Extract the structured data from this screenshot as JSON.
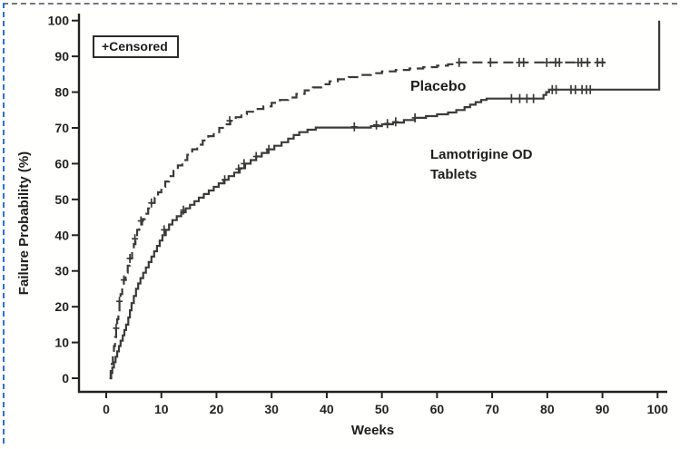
{
  "figure": {
    "legend_label": "+Censored",
    "annotations": {
      "placebo": "Placebo",
      "lamotrigine_line1": "Lamotrigine OD",
      "lamotrigine_line2": "Tablets"
    }
  },
  "chart_data": {
    "type": "line",
    "subtype": "kaplan-meier-step",
    "title": "",
    "xlabel": "Weeks",
    "ylabel": "Failure Probability (%)",
    "xlim": [
      0,
      100
    ],
    "ylim": [
      0,
      100
    ],
    "x_ticks": [
      0,
      10,
      20,
      30,
      40,
      50,
      60,
      70,
      80,
      90,
      100
    ],
    "y_ticks": [
      0,
      10,
      20,
      30,
      40,
      50,
      60,
      70,
      80,
      90,
      100
    ],
    "grid": false,
    "legend": {
      "label": "+Censored",
      "position": "top-left"
    },
    "axis_color": "#222222",
    "series": [
      {
        "id": "placebo",
        "name": "Placebo",
        "style": "dashed",
        "color": "#3a3a3a",
        "step": true,
        "points": [
          [
            0.6,
            0
          ],
          [
            0.8,
            2
          ],
          [
            1,
            4
          ],
          [
            1.2,
            6.5
          ],
          [
            1.4,
            9
          ],
          [
            1.6,
            11.5
          ],
          [
            1.8,
            14
          ],
          [
            2,
            16.5
          ],
          [
            2.2,
            19
          ],
          [
            2.4,
            21.5
          ],
          [
            2.6,
            23.5
          ],
          [
            2.9,
            25.5
          ],
          [
            3.2,
            27.5
          ],
          [
            3.5,
            29.5
          ],
          [
            3.9,
            31.5
          ],
          [
            4.3,
            33.5
          ],
          [
            4.7,
            35.5
          ],
          [
            5,
            37.5
          ],
          [
            5.3,
            39.5
          ],
          [
            5.6,
            41.5
          ],
          [
            6,
            43
          ],
          [
            6.5,
            44.5
          ],
          [
            7,
            46
          ],
          [
            7.6,
            47.5
          ],
          [
            8.2,
            49
          ],
          [
            8.8,
            50.5
          ],
          [
            9.4,
            52
          ],
          [
            10,
            53.5
          ],
          [
            10.7,
            55
          ],
          [
            11.4,
            56.5
          ],
          [
            12.2,
            58
          ],
          [
            13,
            59.5
          ],
          [
            13.8,
            61
          ],
          [
            14.7,
            62.5
          ],
          [
            15.6,
            64
          ],
          [
            16.5,
            65.3
          ],
          [
            17.5,
            66.5
          ],
          [
            18.5,
            67.7
          ],
          [
            19.5,
            68.8
          ],
          [
            20.5,
            70
          ],
          [
            21.5,
            71
          ],
          [
            22.5,
            72
          ],
          [
            23.5,
            73
          ],
          [
            24.5,
            73.8
          ],
          [
            25.5,
            74.5
          ],
          [
            27,
            75.3
          ],
          [
            28.5,
            76
          ],
          [
            30,
            77
          ],
          [
            31.5,
            77.8
          ],
          [
            33,
            78.5
          ],
          [
            34.5,
            79.5
          ],
          [
            36,
            80.5
          ],
          [
            37.5,
            81.3
          ],
          [
            39,
            82.2
          ],
          [
            40.5,
            83
          ],
          [
            42,
            83.6
          ],
          [
            44,
            84.2
          ],
          [
            46,
            84.8
          ],
          [
            48,
            85.3
          ],
          [
            50,
            85.8
          ],
          [
            52.5,
            86.2
          ],
          [
            55,
            86.6
          ],
          [
            57.5,
            87
          ],
          [
            60,
            87.4
          ],
          [
            62,
            87.8
          ],
          [
            64,
            88.3
          ],
          [
            90.5,
            88.3
          ]
        ],
        "censored": [
          [
            1.8,
            14
          ],
          [
            2.4,
            21.5
          ],
          [
            3.2,
            27.5
          ],
          [
            4.3,
            33.5
          ],
          [
            5.2,
            39
          ],
          [
            6.3,
            44
          ],
          [
            8.2,
            49
          ],
          [
            22.4,
            72
          ],
          [
            64,
            88.3
          ],
          [
            69.7,
            88.3
          ],
          [
            74.9,
            88.3
          ],
          [
            75.7,
            88.3
          ],
          [
            79.9,
            88.3
          ],
          [
            81.5,
            88.3
          ],
          [
            82.2,
            88.3
          ],
          [
            85.6,
            88.3
          ],
          [
            86.2,
            88.3
          ],
          [
            87.3,
            88.3
          ],
          [
            89.1,
            88.3
          ],
          [
            90,
            88.3
          ]
        ]
      },
      {
        "id": "lamotrigine",
        "name": "Lamotrigine OD Tablets",
        "style": "solid",
        "color": "#3a3a3a",
        "step": true,
        "points": [
          [
            0.7,
            0
          ],
          [
            0.9,
            1.5
          ],
          [
            1.1,
            3
          ],
          [
            1.4,
            4.5
          ],
          [
            1.7,
            6
          ],
          [
            2,
            7.5
          ],
          [
            2.3,
            9
          ],
          [
            2.6,
            10.5
          ],
          [
            3,
            12
          ],
          [
            3.3,
            13.5
          ],
          [
            3.6,
            15
          ],
          [
            4,
            17
          ],
          [
            4.3,
            19
          ],
          [
            4.6,
            21
          ],
          [
            5,
            23
          ],
          [
            5.4,
            25
          ],
          [
            5.8,
            26.5
          ],
          [
            6.2,
            28
          ],
          [
            6.7,
            29.5
          ],
          [
            7.2,
            31
          ],
          [
            7.7,
            32.5
          ],
          [
            8.2,
            34
          ],
          [
            8.7,
            35.5
          ],
          [
            9.2,
            37
          ],
          [
            9.7,
            38.5
          ],
          [
            10.2,
            40
          ],
          [
            10.8,
            41.5
          ],
          [
            11.4,
            43
          ],
          [
            12,
            44.2
          ],
          [
            12.8,
            45.3
          ],
          [
            13.6,
            46.4
          ],
          [
            14.4,
            47.5
          ],
          [
            15.2,
            48.5
          ],
          [
            16,
            49.5
          ],
          [
            16.8,
            50.5
          ],
          [
            17.7,
            51.5
          ],
          [
            18.6,
            52.5
          ],
          [
            19.5,
            53.5
          ],
          [
            20.4,
            54.5
          ],
          [
            21.3,
            55.5
          ],
          [
            22.2,
            56.5
          ],
          [
            23.2,
            57.5
          ],
          [
            24.2,
            58.7
          ],
          [
            25.2,
            60
          ],
          [
            26.2,
            61
          ],
          [
            27.2,
            62
          ],
          [
            28.2,
            63
          ],
          [
            29.2,
            64
          ],
          [
            30.5,
            65
          ],
          [
            31.8,
            66
          ],
          [
            33,
            67
          ],
          [
            34,
            68
          ],
          [
            35,
            68.8
          ],
          [
            36.5,
            69.5
          ],
          [
            38,
            70.1
          ],
          [
            48,
            70.5
          ],
          [
            50,
            71
          ],
          [
            52,
            71.5
          ],
          [
            54,
            72.2
          ],
          [
            56,
            72.8
          ],
          [
            58,
            73.3
          ],
          [
            60,
            73.8
          ],
          [
            62,
            74.3
          ],
          [
            63.5,
            75
          ],
          [
            65,
            75.8
          ],
          [
            66,
            76.5
          ],
          [
            67,
            77.2
          ],
          [
            68,
            77.8
          ],
          [
            69,
            78.2
          ],
          [
            78.8,
            78.2
          ],
          [
            79.3,
            79.2
          ],
          [
            79.8,
            80
          ],
          [
            80.3,
            80.7
          ],
          [
            100.3,
            80.7
          ],
          [
            100.3,
            100
          ]
        ],
        "censored": [
          [
            10.5,
            41.5
          ],
          [
            14,
            47
          ],
          [
            21.5,
            55.5
          ],
          [
            24,
            58.5
          ],
          [
            25,
            60
          ],
          [
            27.2,
            62
          ],
          [
            29.5,
            64
          ],
          [
            45,
            70.3
          ],
          [
            49,
            70.8
          ],
          [
            51,
            71.2
          ],
          [
            52.5,
            71.7
          ],
          [
            56,
            72.8
          ],
          [
            73.5,
            78.2
          ],
          [
            75,
            78.2
          ],
          [
            76.3,
            78.2
          ],
          [
            77.5,
            78.2
          ],
          [
            80.9,
            80.7
          ],
          [
            81.6,
            80.7
          ],
          [
            84.3,
            80.7
          ],
          [
            85.1,
            80.7
          ],
          [
            86.3,
            80.7
          ],
          [
            87.1,
            80.7
          ],
          [
            87.8,
            80.7
          ]
        ]
      }
    ]
  }
}
